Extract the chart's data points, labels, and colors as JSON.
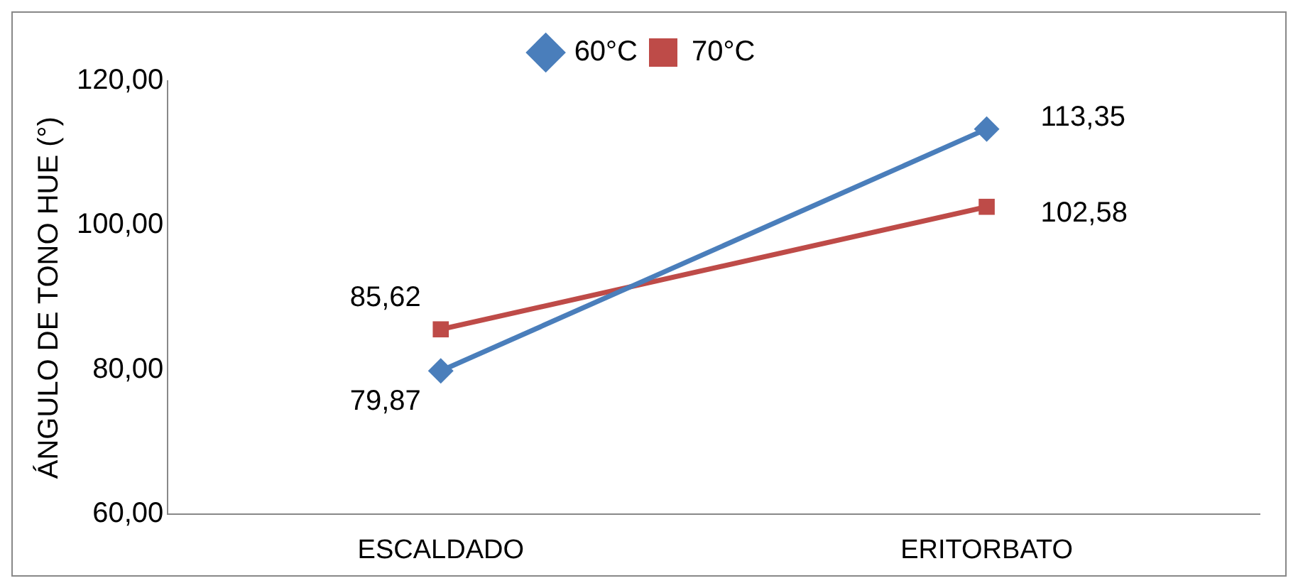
{
  "chart_data": {
    "type": "line",
    "ylabel": "ÁNGULO DE TONO HUE (°)",
    "categories": [
      "ESCALDADO",
      "ERITORBATO"
    ],
    "series": [
      {
        "name": "60°C",
        "color": "#4a7ebb",
        "marker": "diamond",
        "values": [
          79.87,
          113.35
        ],
        "value_labels": [
          "79,87",
          "113,35"
        ]
      },
      {
        "name": "70°C",
        "color": "#be4b48",
        "marker": "square",
        "values": [
          85.62,
          102.58
        ],
        "value_labels": [
          "85,62",
          "102,58"
        ]
      }
    ],
    "ylim": [
      60,
      120
    ],
    "yticks": [
      {
        "value": 60,
        "label": "60,00"
      },
      {
        "value": 80,
        "label": "80,00"
      },
      {
        "value": 100,
        "label": "100,00"
      },
      {
        "value": 120,
        "label": "120,00"
      }
    ],
    "grid": false,
    "legend": "top"
  }
}
